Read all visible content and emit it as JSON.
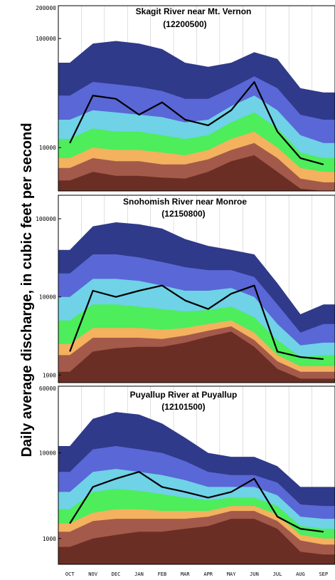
{
  "figure": {
    "ylabel": "Daily average discharge, in cubic feet per second",
    "months": [
      "OCT",
      "NOV",
      "DEC",
      "JAN",
      "FEB",
      "MAR",
      "APR",
      "MAY",
      "JUN",
      "JUL",
      "AUG",
      "SEP"
    ]
  },
  "colors": {
    "band_max": "#2f3a8a",
    "band_90": "#5a67d6",
    "band_75": "#6fd2e6",
    "band_median": "#4ded5c",
    "band_25": "#f4b15e",
    "band_10": "#a35a4a",
    "band_min": "#6b2e25",
    "current_year": "#000000"
  },
  "chart_data": [
    {
      "type": "area",
      "title": "Skagit River near Mt. Vernon",
      "subtitle": "(12200500)",
      "scale": "log",
      "ylim": [
        4000,
        200000
      ],
      "yticks": [
        10000,
        100000,
        200000
      ],
      "ytick_labels": [
        "10000",
        "100000",
        "200000"
      ],
      "x": [
        "OCT",
        "NOV",
        "DEC",
        "JAN",
        "FEB",
        "MAR",
        "APR",
        "MAY",
        "JUN",
        "JUL",
        "AUG",
        "SEP"
      ],
      "series": [
        {
          "values": [
            60000,
            90000,
            95000,
            90000,
            80000,
            60000,
            55000,
            60000,
            75000,
            65000,
            35000,
            32000
          ]
        },
        {
          "values": [
            30000,
            40000,
            38000,
            36000,
            33000,
            28000,
            28000,
            35000,
            45000,
            35000,
            20000,
            18000
          ]
        },
        {
          "values": [
            18000,
            22000,
            21000,
            20000,
            19000,
            17000,
            18000,
            24000,
            30000,
            22000,
            13000,
            11000
          ]
        },
        {
          "values": [
            12000,
            15000,
            14000,
            14000,
            13000,
            12000,
            13000,
            17000,
            21000,
            15000,
            9000,
            8000
          ]
        },
        {
          "values": [
            8000,
            10000,
            9500,
            9500,
            9000,
            8500,
            9500,
            12000,
            14000,
            10000,
            6500,
            6000
          ]
        },
        {
          "values": [
            6500,
            8000,
            7500,
            7500,
            7000,
            7000,
            7800,
            9500,
            11000,
            8000,
            5200,
            4800
          ]
        },
        {
          "values": [
            5000,
            6000,
            5500,
            5500,
            5300,
            5200,
            6000,
            7500,
            8500,
            6000,
            4200,
            4000
          ]
        },
        {
          "values": [
            11000,
            30000,
            28000,
            20000,
            26000,
            18000,
            16000,
            22000,
            40000,
            14000,
            8000,
            7000
          ]
        }
      ]
    },
    {
      "type": "area",
      "title": "Snohomish River near Monroe",
      "subtitle": "(12150800)",
      "scale": "log",
      "ylim": [
        800,
        200000
      ],
      "yticks": [
        1000,
        10000,
        100000
      ],
      "ytick_labels": [
        "1000",
        "10000",
        "100000"
      ],
      "x": [
        "OCT",
        "NOV",
        "DEC",
        "JAN",
        "FEB",
        "MAR",
        "APR",
        "MAY",
        "JUN",
        "JUL",
        "AUG",
        "SEP"
      ],
      "series": [
        {
          "values": [
            40000,
            80000,
            90000,
            85000,
            75000,
            55000,
            45000,
            40000,
            35000,
            15000,
            6000,
            8000
          ]
        },
        {
          "values": [
            20000,
            35000,
            35000,
            32000,
            28000,
            24000,
            22000,
            22000,
            18000,
            8000,
            3500,
            4500
          ]
        },
        {
          "values": [
            10000,
            17000,
            17000,
            16000,
            14000,
            12000,
            12000,
            13000,
            10000,
            4500,
            2400,
            2600
          ]
        },
        {
          "values": [
            5000,
            8000,
            8000,
            7500,
            7000,
            6500,
            6800,
            7500,
            5500,
            2800,
            1700,
            1800
          ]
        },
        {
          "values": [
            2500,
            4000,
            4000,
            4000,
            3800,
            4000,
            4500,
            5000,
            3500,
            1800,
            1300,
            1300
          ]
        },
        {
          "values": [
            1800,
            3000,
            3000,
            3000,
            2900,
            3200,
            3700,
            4200,
            2800,
            1500,
            1100,
            1100
          ]
        },
        {
          "values": [
            1100,
            2000,
            2200,
            2300,
            2300,
            2600,
            3100,
            3600,
            2300,
            1200,
            900,
            900
          ]
        },
        {
          "values": [
            2000,
            12000,
            10000,
            12000,
            14000,
            9000,
            7000,
            11000,
            14000,
            2000,
            1700,
            1600
          ]
        }
      ]
    },
    {
      "type": "area",
      "title": "Puyallup  River at Puyallup",
      "subtitle": "(12101500)",
      "scale": "log",
      "ylim": [
        500,
        60000
      ],
      "yticks": [
        1000,
        10000,
        60000
      ],
      "ytick_labels": [
        "1000",
        "10000",
        "60000"
      ],
      "x": [
        "OCT",
        "NOV",
        "DEC",
        "JAN",
        "FEB",
        "MAR",
        "APR",
        "MAY",
        "JUN",
        "JUL",
        "AUG",
        "SEP"
      ],
      "series": [
        {
          "values": [
            12000,
            25000,
            30000,
            28000,
            22000,
            15000,
            10000,
            9000,
            9000,
            7000,
            4000,
            4000
          ]
        },
        {
          "values": [
            6000,
            11000,
            12000,
            11000,
            10000,
            8000,
            6000,
            5500,
            5500,
            4500,
            2500,
            2400
          ]
        },
        {
          "values": [
            3500,
            6000,
            6500,
            6000,
            5500,
            4800,
            4000,
            4000,
            4000,
            3200,
            1800,
            1700
          ]
        },
        {
          "values": [
            2200,
            3500,
            3800,
            3600,
            3300,
            3000,
            2800,
            3000,
            3000,
            2400,
            1400,
            1300
          ]
        },
        {
          "values": [
            1500,
            2000,
            2200,
            2200,
            2100,
            2100,
            2100,
            2400,
            2400,
            1900,
            1100,
            1000
          ]
        },
        {
          "values": [
            1200,
            1600,
            1700,
            1700,
            1700,
            1700,
            1800,
            2100,
            2100,
            1600,
            950,
            850
          ]
        },
        {
          "values": [
            800,
            1000,
            1100,
            1200,
            1200,
            1300,
            1400,
            1700,
            1700,
            1300,
            700,
            650
          ]
        },
        {
          "values": [
            1500,
            4000,
            5000,
            6000,
            4000,
            3500,
            3000,
            3500,
            5000,
            1800,
            1300,
            1200
          ]
        }
      ]
    }
  ]
}
